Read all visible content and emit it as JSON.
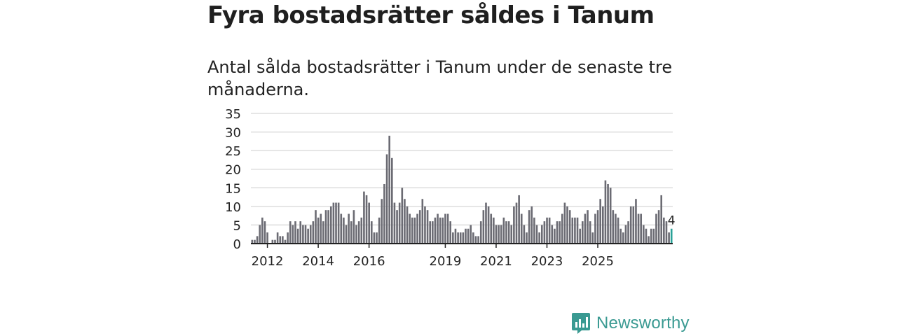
{
  "header": {
    "title": "Fyra bostadsrätter såldes i Tanum",
    "subtitle": "Antal sålda bostadsrätter i Tanum under de senaste tre månaderna."
  },
  "brand": {
    "name": "Newsworthy",
    "logo_icon": "newsworthy-bar-chart-logo"
  },
  "colors": {
    "bar": "#6b6b73",
    "highlight": "#2aa198",
    "axis": "#222222",
    "grid": "#dddddd",
    "brand": "#3a9a92"
  },
  "chart_data": {
    "type": "bar",
    "title": "Fyra bostadsrätter såldes i Tanum",
    "subtitle": "Antal sålda bostadsrätter i Tanum under de senaste tre månaderna.",
    "xlabel": "",
    "ylabel": "",
    "ylim": [
      0,
      35
    ],
    "yticks": [
      0,
      5,
      10,
      15,
      20,
      25,
      30,
      35
    ],
    "xticks": [
      {
        "label": "2012",
        "index": 6
      },
      {
        "label": "2014",
        "index": 26
      },
      {
        "label": "2016",
        "index": 46
      },
      {
        "label": "2019",
        "index": 76
      },
      {
        "label": "2021",
        "index": 96
      },
      {
        "label": "2023",
        "index": 116
      },
      {
        "label": "2025",
        "index": 136
      }
    ],
    "grid": true,
    "values": [
      1,
      1,
      2,
      5,
      7,
      6,
      3,
      0,
      1,
      1,
      3,
      2,
      2,
      1,
      3,
      6,
      5,
      6,
      4,
      6,
      5,
      5,
      4,
      5,
      6,
      9,
      7,
      8,
      6,
      9,
      9,
      10,
      11,
      11,
      11,
      8,
      7,
      5,
      8,
      6,
      9,
      5,
      6,
      7,
      14,
      13,
      11,
      6,
      3,
      3,
      7,
      12,
      16,
      24,
      29,
      23,
      11,
      9,
      11,
      15,
      12,
      10,
      8,
      7,
      7,
      8,
      9,
      12,
      10,
      9,
      6,
      6,
      7,
      8,
      7,
      7,
      8,
      8,
      6,
      3,
      4,
      3,
      3,
      3,
      4,
      4,
      5,
      3,
      2,
      2,
      6,
      9,
      11,
      10,
      8,
      7,
      5,
      5,
      5,
      7,
      6,
      6,
      5,
      10,
      11,
      13,
      8,
      5,
      3,
      9,
      10,
      7,
      5,
      3,
      5,
      6,
      7,
      7,
      5,
      4,
      6,
      6,
      8,
      11,
      10,
      9,
      7,
      7,
      7,
      4,
      6,
      8,
      9,
      6,
      3,
      8,
      9,
      12,
      10,
      17,
      16,
      15,
      9,
      8,
      7,
      4,
      3,
      5,
      6,
      10,
      10,
      12,
      8,
      8,
      5,
      4,
      2,
      4,
      4,
      8,
      9,
      13,
      7,
      6,
      3,
      4
    ],
    "highlight_index": 165,
    "highlight_label": "4"
  }
}
